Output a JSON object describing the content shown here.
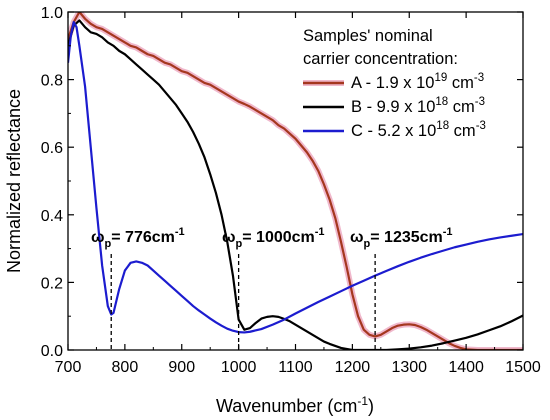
{
  "chart_data": {
    "type": "line",
    "xlabel": "Wavenumber (cm",
    "xlabel_sup": "-1",
    "xlabel_end": ")",
    "ylabel": "Normalized reflectance",
    "xlim": [
      700,
      1500
    ],
    "ylim": [
      0.0,
      1.0
    ],
    "x_ticks": [
      700,
      800,
      900,
      1000,
      1100,
      1200,
      1300,
      1400,
      1500
    ],
    "x_tick_labels": [
      "700",
      "800",
      "900",
      "1000",
      "1100",
      "1200",
      "1300",
      "1400",
      "1500"
    ],
    "y_ticks": [
      0.0,
      0.2,
      0.4,
      0.6,
      0.8,
      1.0
    ],
    "y_tick_labels": [
      "0.0",
      "0.2",
      "0.4",
      "0.6",
      "0.8",
      "1.0"
    ],
    "grid": false,
    "legend_position": "top-right",
    "legend_title": [
      "Samples' nominal",
      "carrier concentration:"
    ],
    "series": [
      {
        "name": "A - 1.9 x 10",
        "name_sup": "19",
        "name_end": " cm",
        "name_sup2": "-3",
        "color": "#a5371f",
        "halo": "#f0b8cc",
        "points": [
          [
            700,
            0.92
          ],
          [
            710,
            0.97
          ],
          [
            720,
            1.0
          ],
          [
            730,
            0.98
          ],
          [
            740,
            0.965
          ],
          [
            750,
            0.955
          ],
          [
            760,
            0.95
          ],
          [
            770,
            0.94
          ],
          [
            780,
            0.93
          ],
          [
            790,
            0.92
          ],
          [
            800,
            0.91
          ],
          [
            810,
            0.9
          ],
          [
            820,
            0.895
          ],
          [
            830,
            0.885
          ],
          [
            840,
            0.875
          ],
          [
            850,
            0.87
          ],
          [
            860,
            0.86
          ],
          [
            870,
            0.85
          ],
          [
            880,
            0.845
          ],
          [
            890,
            0.835
          ],
          [
            900,
            0.825
          ],
          [
            910,
            0.82
          ],
          [
            920,
            0.81
          ],
          [
            930,
            0.8
          ],
          [
            940,
            0.79
          ],
          [
            950,
            0.785
          ],
          [
            960,
            0.775
          ],
          [
            970,
            0.765
          ],
          [
            980,
            0.755
          ],
          [
            990,
            0.745
          ],
          [
            1000,
            0.735
          ],
          [
            1010,
            0.728
          ],
          [
            1020,
            0.72
          ],
          [
            1030,
            0.71
          ],
          [
            1040,
            0.7
          ],
          [
            1050,
            0.69
          ],
          [
            1060,
            0.68
          ],
          [
            1070,
            0.665
          ],
          [
            1080,
            0.655
          ],
          [
            1090,
            0.64
          ],
          [
            1100,
            0.625
          ],
          [
            1110,
            0.605
          ],
          [
            1120,
            0.585
          ],
          [
            1130,
            0.56
          ],
          [
            1140,
            0.53
          ],
          [
            1150,
            0.49
          ],
          [
            1160,
            0.445
          ],
          [
            1170,
            0.39
          ],
          [
            1180,
            0.32
          ],
          [
            1190,
            0.245
          ],
          [
            1200,
            0.165
          ],
          [
            1210,
            0.1
          ],
          [
            1220,
            0.06
          ],
          [
            1230,
            0.045
          ],
          [
            1240,
            0.04
          ],
          [
            1250,
            0.045
          ],
          [
            1260,
            0.055
          ],
          [
            1270,
            0.065
          ],
          [
            1280,
            0.072
          ],
          [
            1290,
            0.075
          ],
          [
            1300,
            0.076
          ],
          [
            1310,
            0.074
          ],
          [
            1320,
            0.068
          ],
          [
            1330,
            0.06
          ],
          [
            1340,
            0.05
          ],
          [
            1350,
            0.04
          ],
          [
            1360,
            0.03
          ],
          [
            1370,
            0.02
          ],
          [
            1380,
            0.012
          ],
          [
            1390,
            0.006
          ],
          [
            1400,
            0.002
          ],
          [
            1420,
            0.0
          ],
          [
            1450,
            0.0
          ],
          [
            1500,
            0.0
          ]
        ]
      },
      {
        "name": "B - 9.9 x 10",
        "name_sup": "18",
        "name_end": " cm",
        "name_sup2": "-3",
        "color": "#000000",
        "points": [
          [
            700,
            0.9
          ],
          [
            710,
            0.96
          ],
          [
            720,
            0.975
          ],
          [
            730,
            0.955
          ],
          [
            740,
            0.94
          ],
          [
            750,
            0.935
          ],
          [
            760,
            0.925
          ],
          [
            770,
            0.91
          ],
          [
            780,
            0.9
          ],
          [
            790,
            0.885
          ],
          [
            800,
            0.875
          ],
          [
            810,
            0.86
          ],
          [
            820,
            0.845
          ],
          [
            830,
            0.83
          ],
          [
            840,
            0.815
          ],
          [
            850,
            0.8
          ],
          [
            860,
            0.785
          ],
          [
            870,
            0.765
          ],
          [
            880,
            0.745
          ],
          [
            890,
            0.725
          ],
          [
            900,
            0.7
          ],
          [
            910,
            0.675
          ],
          [
            920,
            0.645
          ],
          [
            930,
            0.61
          ],
          [
            940,
            0.57
          ],
          [
            950,
            0.52
          ],
          [
            960,
            0.465
          ],
          [
            970,
            0.4
          ],
          [
            980,
            0.32
          ],
          [
            990,
            0.22
          ],
          [
            1000,
            0.09
          ],
          [
            1010,
            0.06
          ],
          [
            1020,
            0.065
          ],
          [
            1030,
            0.08
          ],
          [
            1040,
            0.093
          ],
          [
            1050,
            0.098
          ],
          [
            1060,
            0.1
          ],
          [
            1070,
            0.098
          ],
          [
            1080,
            0.092
          ],
          [
            1090,
            0.085
          ],
          [
            1100,
            0.075
          ],
          [
            1110,
            0.065
          ],
          [
            1120,
            0.055
          ],
          [
            1130,
            0.045
          ],
          [
            1140,
            0.035
          ],
          [
            1150,
            0.025
          ],
          [
            1160,
            0.018
          ],
          [
            1170,
            0.012
          ],
          [
            1180,
            0.006
          ],
          [
            1190,
            0.003
          ],
          [
            1200,
            0.0
          ],
          [
            1220,
            0.0
          ],
          [
            1240,
            0.0
          ],
          [
            1260,
            0.0
          ],
          [
            1280,
            0.002
          ],
          [
            1300,
            0.004
          ],
          [
            1320,
            0.008
          ],
          [
            1340,
            0.013
          ],
          [
            1360,
            0.02
          ],
          [
            1380,
            0.028
          ],
          [
            1400,
            0.036
          ],
          [
            1420,
            0.046
          ],
          [
            1440,
            0.058
          ],
          [
            1460,
            0.07
          ],
          [
            1480,
            0.085
          ],
          [
            1500,
            0.102
          ]
        ]
      },
      {
        "name": "C - 5.2 x 10",
        "name_sup": "18",
        "name_end": " cm",
        "name_sup2": "-3",
        "color": "#1c1ccf",
        "points": [
          [
            700,
            0.85
          ],
          [
            705,
            0.93
          ],
          [
            710,
            0.97
          ],
          [
            715,
            0.955
          ],
          [
            720,
            0.9
          ],
          [
            730,
            0.78
          ],
          [
            740,
            0.6
          ],
          [
            750,
            0.42
          ],
          [
            760,
            0.25
          ],
          [
            770,
            0.13
          ],
          [
            776,
            0.105
          ],
          [
            780,
            0.11
          ],
          [
            790,
            0.18
          ],
          [
            800,
            0.235
          ],
          [
            810,
            0.258
          ],
          [
            820,
            0.262
          ],
          [
            830,
            0.258
          ],
          [
            840,
            0.25
          ],
          [
            850,
            0.235
          ],
          [
            860,
            0.22
          ],
          [
            870,
            0.205
          ],
          [
            880,
            0.19
          ],
          [
            890,
            0.175
          ],
          [
            900,
            0.16
          ],
          [
            910,
            0.145
          ],
          [
            920,
            0.13
          ],
          [
            930,
            0.117
          ],
          [
            940,
            0.105
          ],
          [
            950,
            0.093
          ],
          [
            960,
            0.082
          ],
          [
            970,
            0.072
          ],
          [
            980,
            0.063
          ],
          [
            990,
            0.057
          ],
          [
            1000,
            0.053
          ],
          [
            1010,
            0.052
          ],
          [
            1020,
            0.054
          ],
          [
            1040,
            0.062
          ],
          [
            1060,
            0.075
          ],
          [
            1080,
            0.09
          ],
          [
            1100,
            0.108
          ],
          [
            1120,
            0.125
          ],
          [
            1140,
            0.142
          ],
          [
            1160,
            0.158
          ],
          [
            1180,
            0.174
          ],
          [
            1200,
            0.19
          ],
          [
            1220,
            0.205
          ],
          [
            1240,
            0.22
          ],
          [
            1260,
            0.234
          ],
          [
            1280,
            0.248
          ],
          [
            1300,
            0.261
          ],
          [
            1320,
            0.273
          ],
          [
            1340,
            0.284
          ],
          [
            1360,
            0.294
          ],
          [
            1380,
            0.304
          ],
          [
            1400,
            0.312
          ],
          [
            1420,
            0.32
          ],
          [
            1440,
            0.327
          ],
          [
            1460,
            0.333
          ],
          [
            1480,
            0.338
          ],
          [
            1500,
            0.343
          ]
        ]
      }
    ],
    "annotations": [
      {
        "x": 776,
        "label_main": "ω",
        "label_sub": "p",
        "label_rest": "= 776cm",
        "label_sup": "-1"
      },
      {
        "x": 1000,
        "label_main": "ω",
        "label_sub": "p",
        "label_rest": "= 1000cm",
        "label_sup": "-1"
      },
      {
        "x": 1240,
        "label_main": "ω",
        "label_sub": "p",
        "label_rest": "= 1235cm",
        "label_sup": "-1"
      }
    ]
  }
}
